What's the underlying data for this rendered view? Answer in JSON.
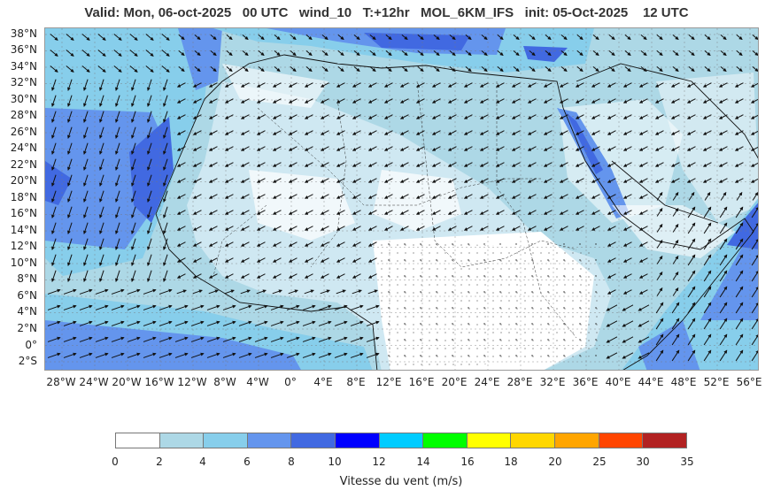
{
  "header": {
    "title": "Valid: Mon, 06-oct-2025   00 UTC   wind_10   T:+12hr   MOL_6KM_IFS   init: 05-Oct-2025    12 UTC"
  },
  "map": {
    "lat_labels": [
      "38°N",
      "36°N",
      "34°N",
      "32°N",
      "30°N",
      "28°N",
      "26°N",
      "24°N",
      "22°N",
      "20°N",
      "18°N",
      "16°N",
      "14°N",
      "12°N",
      "10°N",
      "8°N",
      "6°N",
      "4°N",
      "2°N",
      "0°",
      "2°S"
    ],
    "lon_labels": [
      "28°W",
      "24°W",
      "20°W",
      "16°W",
      "12°W",
      "8°W",
      "4°W",
      "0°",
      "4°E",
      "8°E",
      "12°E",
      "16°E",
      "20°E",
      "24°E",
      "28°E",
      "32°E",
      "36°E",
      "40°E",
      "44°E",
      "48°E",
      "52°E",
      "56°E"
    ],
    "lon_range": [
      -30,
      57
    ],
    "lat_range": [
      -3,
      39
    ]
  },
  "colorbar": {
    "label": "Vitesse du vent (m/s)",
    "ticks": [
      "0",
      "2",
      "4",
      "6",
      "8",
      "10",
      "12",
      "14",
      "16",
      "18",
      "20",
      "25",
      "30",
      "35"
    ],
    "colors": [
      "#ffffff",
      "#add8e6",
      "#87ceeb",
      "#6495ed",
      "#4169e1",
      "#0000ff",
      "#00ccff",
      "#00ff00",
      "#ffff00",
      "#ffd700",
      "#ffa500",
      "#ff4500",
      "#b22222"
    ]
  }
}
